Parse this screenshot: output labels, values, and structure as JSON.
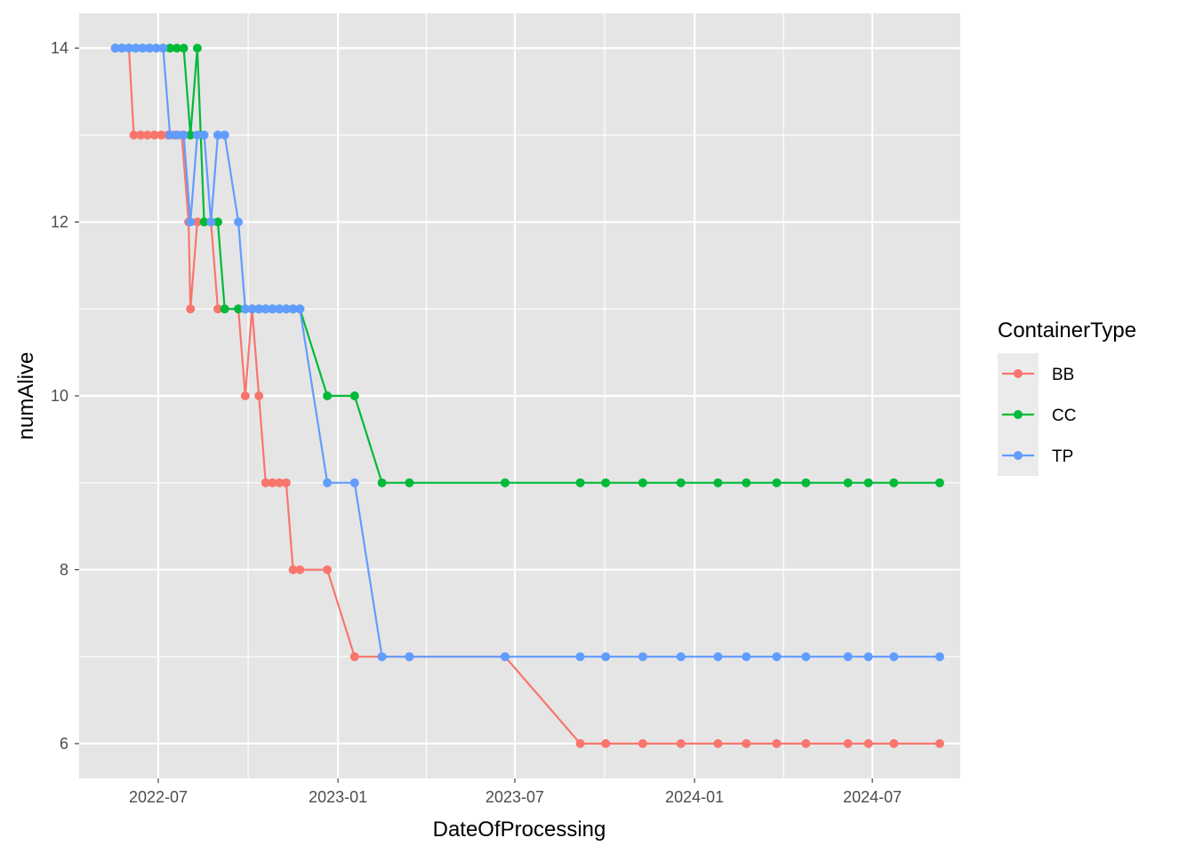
{
  "chart_data": {
    "type": "line",
    "xlabel": "DateOfProcessing",
    "ylabel": "numAlive",
    "xlim": [
      "2022-04-11",
      "2024-09-29"
    ],
    "ylim": [
      5.6,
      14.4
    ],
    "x_ticks": [
      "2022-07-01",
      "2023-01-01",
      "2023-07-01",
      "2024-01-01",
      "2024-07-01"
    ],
    "x_tick_labels": [
      "2022-07",
      "2023-01",
      "2023-07",
      "2024-01",
      "2024-07"
    ],
    "y_ticks": [
      6,
      8,
      10,
      12,
      14
    ],
    "y_tick_labels": [
      "6",
      "8",
      "10",
      "12",
      "14"
    ],
    "grid": true,
    "panel_background": "#e5e5e5",
    "grid_color": "#ffffff",
    "legend": {
      "title": "ContainerType",
      "position": "right"
    },
    "series": [
      {
        "name": "BB",
        "color": "#f8766d",
        "points": [
          {
            "x": "2022-05-18",
            "y": 14
          },
          {
            "x": "2022-05-25",
            "y": 14
          },
          {
            "x": "2022-06-01",
            "y": 14
          },
          {
            "x": "2022-06-06",
            "y": 13
          },
          {
            "x": "2022-06-13",
            "y": 13
          },
          {
            "x": "2022-06-20",
            "y": 13
          },
          {
            "x": "2022-06-27",
            "y": 13
          },
          {
            "x": "2022-07-04",
            "y": 13
          },
          {
            "x": "2022-07-11",
            "y": 13
          },
          {
            "x": "2022-07-18",
            "y": 13
          },
          {
            "x": "2022-07-25",
            "y": 13
          },
          {
            "x": "2022-08-01",
            "y": 12
          },
          {
            "x": "2022-08-03",
            "y": 11
          },
          {
            "x": "2022-08-10",
            "y": 12
          },
          {
            "x": "2022-08-17",
            "y": 12
          },
          {
            "x": "2022-08-24",
            "y": 12
          },
          {
            "x": "2022-08-31",
            "y": 11
          },
          {
            "x": "2022-09-21",
            "y": 11
          },
          {
            "x": "2022-09-28",
            "y": 10
          },
          {
            "x": "2022-10-05",
            "y": 11
          },
          {
            "x": "2022-10-12",
            "y": 10
          },
          {
            "x": "2022-10-19",
            "y": 9
          },
          {
            "x": "2022-10-26",
            "y": 9
          },
          {
            "x": "2022-11-02",
            "y": 9
          },
          {
            "x": "2022-11-09",
            "y": 9
          },
          {
            "x": "2022-11-16",
            "y": 8
          },
          {
            "x": "2022-11-23",
            "y": 8
          },
          {
            "x": "2022-12-21",
            "y": 8
          },
          {
            "x": "2023-01-18",
            "y": 7
          },
          {
            "x": "2023-02-15",
            "y": 7
          },
          {
            "x": "2023-03-15",
            "y": 7
          },
          {
            "x": "2023-06-21",
            "y": 7
          },
          {
            "x": "2023-09-06",
            "y": 6
          },
          {
            "x": "2023-10-02",
            "y": 6
          },
          {
            "x": "2023-11-09",
            "y": 6
          },
          {
            "x": "2023-12-18",
            "y": 6
          },
          {
            "x": "2024-01-25",
            "y": 6
          },
          {
            "x": "2024-02-23",
            "y": 6
          },
          {
            "x": "2024-03-25",
            "y": 6
          },
          {
            "x": "2024-04-24",
            "y": 6
          },
          {
            "x": "2024-06-06",
            "y": 6
          },
          {
            "x": "2024-06-27",
            "y": 6
          },
          {
            "x": "2024-07-23",
            "y": 6
          },
          {
            "x": "2024-09-08",
            "y": 6
          }
        ]
      },
      {
        "name": "CC",
        "color": "#00ba38",
        "points": [
          {
            "x": "2022-05-18",
            "y": 14
          },
          {
            "x": "2022-05-25",
            "y": 14
          },
          {
            "x": "2022-06-01",
            "y": 14
          },
          {
            "x": "2022-06-08",
            "y": 14
          },
          {
            "x": "2022-06-15",
            "y": 14
          },
          {
            "x": "2022-06-22",
            "y": 14
          },
          {
            "x": "2022-06-29",
            "y": 14
          },
          {
            "x": "2022-07-06",
            "y": 14
          },
          {
            "x": "2022-07-13",
            "y": 14
          },
          {
            "x": "2022-07-20",
            "y": 14
          },
          {
            "x": "2022-07-27",
            "y": 14
          },
          {
            "x": "2022-08-03",
            "y": 13
          },
          {
            "x": "2022-08-10",
            "y": 14
          },
          {
            "x": "2022-08-17",
            "y": 12
          },
          {
            "x": "2022-08-24",
            "y": 12
          },
          {
            "x": "2022-08-31",
            "y": 12
          },
          {
            "x": "2022-09-07",
            "y": 11
          },
          {
            "x": "2022-09-21",
            "y": 11
          },
          {
            "x": "2022-09-28",
            "y": 11
          },
          {
            "x": "2022-10-05",
            "y": 11
          },
          {
            "x": "2022-10-12",
            "y": 11
          },
          {
            "x": "2022-10-19",
            "y": 11
          },
          {
            "x": "2022-10-26",
            "y": 11
          },
          {
            "x": "2022-11-02",
            "y": 11
          },
          {
            "x": "2022-11-09",
            "y": 11
          },
          {
            "x": "2022-11-16",
            "y": 11
          },
          {
            "x": "2022-11-23",
            "y": 11
          },
          {
            "x": "2022-12-21",
            "y": 10
          },
          {
            "x": "2023-01-18",
            "y": 10
          },
          {
            "x": "2023-02-15",
            "y": 9
          },
          {
            "x": "2023-03-15",
            "y": 9
          },
          {
            "x": "2023-06-21",
            "y": 9
          },
          {
            "x": "2023-09-06",
            "y": 9
          },
          {
            "x": "2023-10-02",
            "y": 9
          },
          {
            "x": "2023-11-09",
            "y": 9
          },
          {
            "x": "2023-12-18",
            "y": 9
          },
          {
            "x": "2024-01-25",
            "y": 9
          },
          {
            "x": "2024-02-23",
            "y": 9
          },
          {
            "x": "2024-03-25",
            "y": 9
          },
          {
            "x": "2024-04-24",
            "y": 9
          },
          {
            "x": "2024-06-06",
            "y": 9
          },
          {
            "x": "2024-06-27",
            "y": 9
          },
          {
            "x": "2024-07-23",
            "y": 9
          },
          {
            "x": "2024-09-08",
            "y": 9
          }
        ]
      },
      {
        "name": "TP",
        "color": "#619cff",
        "points": [
          {
            "x": "2022-05-18",
            "y": 14
          },
          {
            "x": "2022-05-25",
            "y": 14
          },
          {
            "x": "2022-06-01",
            "y": 14
          },
          {
            "x": "2022-06-08",
            "y": 14
          },
          {
            "x": "2022-06-15",
            "y": 14
          },
          {
            "x": "2022-06-22",
            "y": 14
          },
          {
            "x": "2022-06-29",
            "y": 14
          },
          {
            "x": "2022-07-06",
            "y": 14
          },
          {
            "x": "2022-07-13",
            "y": 13
          },
          {
            "x": "2022-07-20",
            "y": 13
          },
          {
            "x": "2022-07-27",
            "y": 13
          },
          {
            "x": "2022-08-03",
            "y": 12
          },
          {
            "x": "2022-08-10",
            "y": 13
          },
          {
            "x": "2022-08-17",
            "y": 13
          },
          {
            "x": "2022-08-24",
            "y": 12
          },
          {
            "x": "2022-08-31",
            "y": 13
          },
          {
            "x": "2022-09-07",
            "y": 13
          },
          {
            "x": "2022-09-21",
            "y": 12
          },
          {
            "x": "2022-09-28",
            "y": 11
          },
          {
            "x": "2022-10-05",
            "y": 11
          },
          {
            "x": "2022-10-12",
            "y": 11
          },
          {
            "x": "2022-10-19",
            "y": 11
          },
          {
            "x": "2022-10-26",
            "y": 11
          },
          {
            "x": "2022-11-02",
            "y": 11
          },
          {
            "x": "2022-11-09",
            "y": 11
          },
          {
            "x": "2022-11-16",
            "y": 11
          },
          {
            "x": "2022-11-23",
            "y": 11
          },
          {
            "x": "2022-12-21",
            "y": 9
          },
          {
            "x": "2023-01-18",
            "y": 9
          },
          {
            "x": "2023-02-15",
            "y": 7
          },
          {
            "x": "2023-03-15",
            "y": 7
          },
          {
            "x": "2023-06-21",
            "y": 7
          },
          {
            "x": "2023-09-06",
            "y": 7
          },
          {
            "x": "2023-10-02",
            "y": 7
          },
          {
            "x": "2023-11-09",
            "y": 7
          },
          {
            "x": "2023-12-18",
            "y": 7
          },
          {
            "x": "2024-01-25",
            "y": 7
          },
          {
            "x": "2024-02-23",
            "y": 7
          },
          {
            "x": "2024-03-25",
            "y": 7
          },
          {
            "x": "2024-04-24",
            "y": 7
          },
          {
            "x": "2024-06-06",
            "y": 7
          },
          {
            "x": "2024-06-27",
            "y": 7
          },
          {
            "x": "2024-07-23",
            "y": 7
          },
          {
            "x": "2024-09-08",
            "y": 7
          }
        ]
      }
    ]
  }
}
